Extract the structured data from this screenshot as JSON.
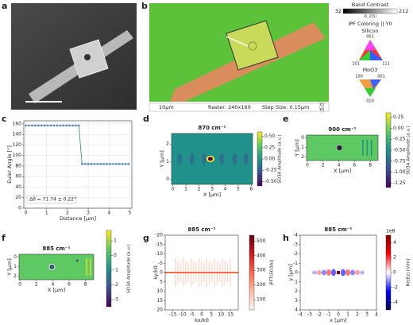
{
  "figure": {
    "a": {
      "label": "a"
    },
    "b": {
      "label": "b",
      "band_contrast": "Band Contrast",
      "bc_min": "32",
      "bc_max": "212",
      "bc_range": "[0..255]",
      "ipf": "IPF Coloring || Y0",
      "silicon": "Silicon",
      "si_001": "001",
      "si_101": "101",
      "si_111": "111",
      "moo3": "MoO3",
      "m_100": "100",
      "m_001": "001",
      "m_010": "010",
      "scale": "10µm",
      "raster": "Raster: 240x160",
      "step": "Step Size: 0.15µm",
      "x1": "X1",
      "y0": "Y0"
    }
  },
  "chart_data": [
    {
      "type": "line",
      "panel_label": "c",
      "xlabel": "Distance [µm]",
      "ylabel": "Euler Angle [°]",
      "annotation": "Δθ = 71.74 ± 0.22°",
      "x": [
        0,
        0.15,
        0.3,
        0.45,
        0.6,
        0.75,
        0.9,
        1.05,
        1.2,
        1.35,
        1.5,
        1.65,
        1.8,
        1.95,
        2.1,
        2.25,
        2.4,
        2.55,
        2.7,
        2.85,
        3.0,
        3.15,
        3.3,
        3.45,
        3.6,
        3.75,
        3.9,
        4.05,
        4.2,
        4.35,
        4.5,
        4.65,
        4.8,
        4.95
      ],
      "series": [
        {
          "color": "#3a78b0",
          "values": [
            157,
            157,
            157,
            157,
            157,
            157,
            157,
            157,
            157,
            157,
            157,
            157,
            157,
            157,
            157,
            157,
            157,
            157,
            84,
            84,
            84,
            84,
            84,
            84,
            84,
            84,
            84,
            84,
            84,
            84,
            84,
            84,
            84,
            84
          ]
        }
      ],
      "xlim": [
        -0.1,
        5.1
      ],
      "xticks": [
        0,
        1,
        2,
        3,
        4,
        5
      ],
      "ylim": [
        0,
        166
      ],
      "yticks": [
        0,
        20,
        40,
        60,
        80,
        100,
        120,
        140,
        160
      ],
      "grid": true
    },
    {
      "type": "heatmap",
      "panel_label": "d",
      "title": "870 cm⁻¹",
      "xlabel": "X [µm]",
      "ylabel": "Y [µm]",
      "xlim": [
        -0.1,
        6.1
      ],
      "xticks": [
        0,
        1,
        2,
        3,
        4,
        5,
        6
      ],
      "ylim": [
        -0.3,
        2.6
      ],
      "yticks": [
        0,
        1,
        2
      ],
      "colorbar": {
        "label": "SO3A Amplitude (a.u.)",
        "lim": [
          -0.6,
          0.6
        ],
        "colors": [
          "#440154",
          "#3b528b",
          "#21918c",
          "#5ec962",
          "#fde725"
        ],
        "ticks": [
          {
            "value": 0.5,
            "label": "0.50"
          },
          {
            "value": 0.25,
            "label": "0.25"
          },
          {
            "value": 0,
            "label": "0.00"
          },
          {
            "value": -0.25,
            "label": "-0.25"
          },
          {
            "value": -0.5,
            "label": "-0.50"
          }
        ]
      }
    },
    {
      "type": "heatmap",
      "panel_label": "e",
      "title": "900 cm⁻¹",
      "xlabel": "X [µm]",
      "ylabel": "Y [µm]",
      "xlim": [
        -0.1,
        9
      ],
      "xticks": [
        0,
        2,
        4,
        6,
        8
      ],
      "ylim": [
        2.4,
        -0.3
      ],
      "yticks": [
        0,
        1,
        2
      ],
      "colorbar": {
        "label": "SO3A Amplitude (a.u.)",
        "lim": [
          -1.35,
          0.35
        ],
        "colors": [
          "#440154",
          "#3b528b",
          "#21918c",
          "#5ec962",
          "#fde725"
        ],
        "ticks": [
          {
            "value": 0.25,
            "label": "0.25"
          },
          {
            "value": 0,
            "label": "0.00"
          },
          {
            "value": -0.25,
            "label": "-0.25"
          },
          {
            "value": -0.5,
            "label": "-0.50"
          },
          {
            "value": -0.75,
            "label": "-0.75"
          },
          {
            "value": -1,
            "label": "-1.00"
          },
          {
            "value": -1.25,
            "label": "-1.25"
          }
        ]
      }
    },
    {
      "type": "heatmap",
      "panel_label": "f",
      "title": "885 cm⁻¹",
      "xlabel": "X [µm]",
      "ylabel": "Y [µm]",
      "xlim": [
        -0.1,
        9
      ],
      "xticks": [
        0,
        2,
        4,
        6,
        8
      ],
      "ylim": [
        2.4,
        -0.3
      ],
      "yticks": [
        0,
        1,
        2
      ],
      "colorbar": {
        "label": "SO3A Amplitude (a.u.)",
        "lim": [
          -3.5,
          1.7
        ],
        "colors": [
          "#440154",
          "#3b528b",
          "#21918c",
          "#5ec962",
          "#fde725"
        ],
        "ticks": [
          1,
          0,
          -1,
          -2,
          -3
        ]
      }
    },
    {
      "type": "heatmap",
      "panel_label": "g",
      "title": "885 cm⁻¹",
      "xlabel": "kx/k0",
      "ylabel": "ky/k0",
      "xlim": [
        -19,
        19
      ],
      "xticks": [
        -15,
        -10,
        -5,
        0,
        5,
        10,
        15
      ],
      "ylim": [
        20,
        -20
      ],
      "yticks": [
        -20,
        -15,
        -10,
        -5,
        0,
        5,
        10,
        15,
        20
      ],
      "colorbar": {
        "label": "|FFT(SO3A)|",
        "lim": [
          30,
          540
        ],
        "colors": [
          "#fff5f0",
          "#fcbba1",
          "#fb6a4a",
          "#cb181d",
          "#67000d"
        ],
        "ticks": [
          100,
          200,
          300,
          400,
          500
        ]
      }
    },
    {
      "type": "heatmap",
      "panel_label": "h",
      "title": "885 cm⁻¹",
      "xlabel": "x [µm]",
      "ylabel": "y [µm]",
      "xlim": [
        -4,
        4
      ],
      "xticks": [
        -4,
        -3,
        -2,
        -1,
        0,
        1,
        2,
        3,
        4
      ],
      "ylim": [
        4,
        -4
      ],
      "yticks": [
        -4,
        -3,
        -2,
        -1,
        0,
        1,
        2,
        3,
        4
      ],
      "colorbar": {
        "label": "Re(Ez) [V/m]",
        "offset": "1e8",
        "lim": [
          -5,
          5
        ],
        "colors": [
          "#00004c",
          "#0000ff",
          "#ffffff",
          "#ff0000",
          "#800000"
        ],
        "ticks": [
          -4,
          -2,
          0,
          2,
          4
        ]
      }
    }
  ]
}
